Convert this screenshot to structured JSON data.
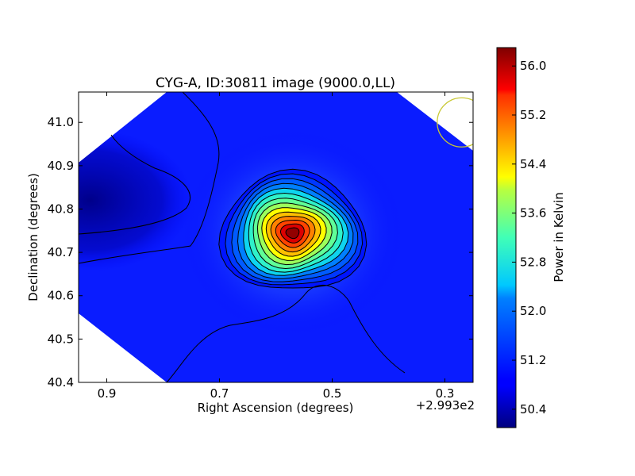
{
  "chart_data": {
    "type": "heatmap",
    "title": "CYG-A, ID:30811 image (9000.0,LL)",
    "xlabel": "Right Ascension (degrees)",
    "ylabel": "Declination (degrees)",
    "x_offset_label": "+2.993e2",
    "xlim": [
      0.95,
      0.25
    ],
    "ylim": [
      40.4,
      41.07
    ],
    "x_ticks": [
      0.9,
      0.7,
      0.5,
      0.3
    ],
    "x_tick_labels": [
      "0.9",
      "0.7",
      "0.5",
      "0.3"
    ],
    "y_ticks": [
      40.4,
      40.5,
      40.6,
      40.7,
      40.8,
      40.9,
      41.0
    ],
    "y_tick_labels": [
      "40.4",
      "40.5",
      "40.6",
      "40.7",
      "40.8",
      "40.9",
      "41.0"
    ],
    "colorbar": {
      "label": "Power in Kelvin",
      "range": [
        50.1,
        56.3
      ],
      "ticks": [
        50.4,
        51.2,
        52.0,
        52.8,
        53.6,
        54.4,
        55.2,
        56.0
      ],
      "tick_labels": [
        "50.4",
        "51.2",
        "52.0",
        "52.8",
        "53.6",
        "54.4",
        "55.2",
        "56.0"
      ],
      "colormap": "jet"
    },
    "peak": {
      "ra": 0.57,
      "dec": 40.745,
      "value": 56.2
    },
    "cold_region": {
      "ra": 0.93,
      "dec": 40.82,
      "value": 50.2
    },
    "contour_count": 14,
    "beam_circle": {
      "ra": 0.27,
      "dec": 41.0,
      "color": "#c8c832"
    }
  }
}
